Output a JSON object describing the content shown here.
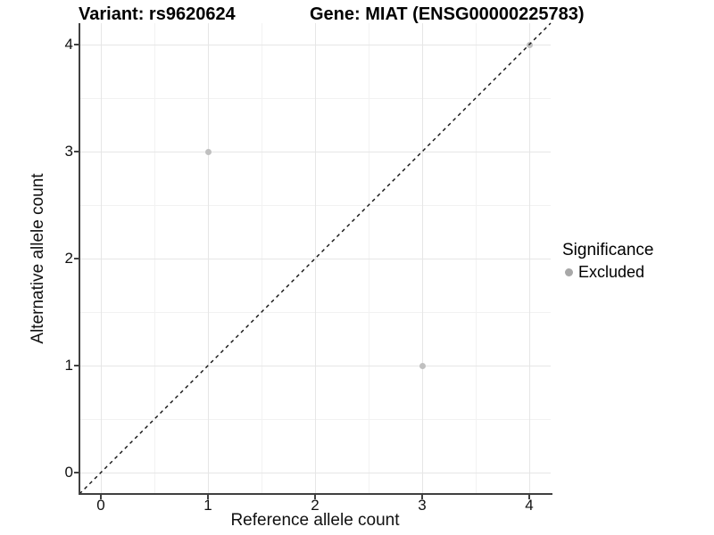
{
  "header": {
    "title_left": "Variant: rs9620624",
    "title_right": "Gene: MIAT (ENSG00000225783)"
  },
  "legend": {
    "title": "Significance",
    "position": "right",
    "items": [
      {
        "label": "Excluded",
        "color": "#a8a8a8",
        "marker": "circle"
      }
    ]
  },
  "chart_data": {
    "type": "scatter",
    "xlabel": "Reference allele count",
    "ylabel": "Alternative allele count",
    "xlim": [
      -0.2,
      4.2
    ],
    "ylim": [
      -0.2,
      4.2
    ],
    "xticks": [
      0,
      1,
      2,
      3,
      4
    ],
    "yticks": [
      0,
      1,
      2,
      3,
      4
    ],
    "xminor": [
      0.5,
      1.5,
      2.5,
      3.5
    ],
    "yminor": [
      0.5,
      1.5,
      2.5,
      3.5
    ],
    "grid": true,
    "series": [
      {
        "name": "Excluded",
        "significance": "Excluded",
        "color": "#c0c0c0",
        "points": [
          [
            1,
            3
          ],
          [
            3,
            1
          ],
          [
            4,
            4
          ]
        ]
      }
    ],
    "identity_line": {
      "slope": 1,
      "intercept": 0,
      "style": "dashed",
      "color": "#111111"
    }
  },
  "colors": {
    "background": "#ffffff",
    "grid_major": "#e6e6e6",
    "grid_minor": "#f2f2f2",
    "axis_line": "#404040",
    "title_text": "#000000",
    "tick_text": "#111111"
  }
}
